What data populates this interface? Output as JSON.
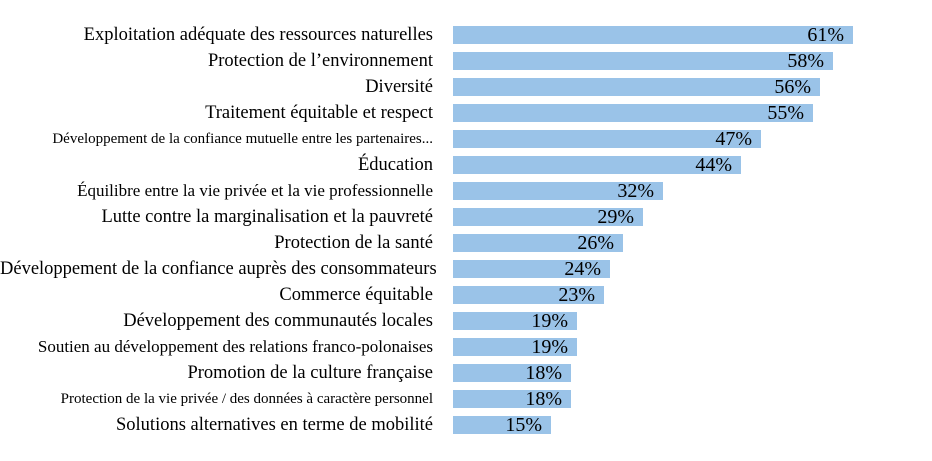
{
  "chart_data": {
    "type": "bar",
    "orientation": "horizontal",
    "title": "",
    "categories": [
      "Exploitation adéquate des ressources naturelles",
      "Protection de l’environnement",
      "Diversité",
      "Traitement équitable et respect",
      "Développement de la confiance mutuelle entre les partenaires...",
      "Éducation",
      "Équilibre entre la vie privée et la vie professionnelle",
      "Lutte contre la marginalisation et la pauvreté",
      "Protection de la santé",
      "Développement de la confiance auprès des consommateurs",
      "Commerce équitable",
      "Développement des communautés locales",
      "Soutien au développement des relations franco-polonaises",
      "Promotion de la culture française",
      "Protection de la vie privée / des données à caractère personnel",
      "Solutions alternatives en terme de mobilité"
    ],
    "values": [
      61,
      58,
      56,
      55,
      47,
      44,
      32,
      29,
      26,
      24,
      23,
      19,
      19,
      18,
      18,
      15
    ],
    "value_labels": [
      "61%",
      "58%",
      "56%",
      "55%",
      "47%",
      "44%",
      "32%",
      "29%",
      "26%",
      "24%",
      "23%",
      "19%",
      "19%",
      "18%",
      "18%",
      "15%"
    ],
    "value_suffix": "%",
    "xlim": [
      0,
      65
    ],
    "grid": false,
    "legend": false,
    "axis_lines": false,
    "bar_color": "#9AC3E8",
    "label_color": "#000000",
    "value_label_color": "#000000",
    "value_label_position": "inside-end",
    "background_color": "#ffffff"
  }
}
